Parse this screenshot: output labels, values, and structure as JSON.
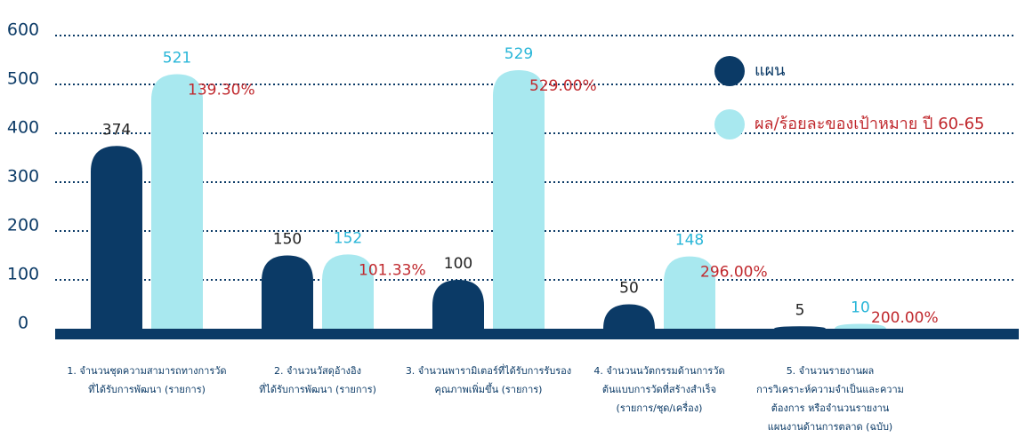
{
  "chart_data": {
    "type": "bar",
    "categories": [
      "1. จำนวนชุดความสามารถทางการวัด\nที่ได้รับการพัฒนา (รายการ)",
      "2. จำนวนวัสดุอ้างอิง\nที่ได้รับการพัฒนา (รายการ)",
      "3. จำนวนพารามิเตอร์ที่ได้รับการรับรอง\nคุณภาพเพิ่มขึ้น (รายการ)",
      "4. จำนวนนวัตกรรมด้านการวัด\nต้นแบบการวัดที่สร้างสำเร็จ\n(รายการ/ชุด/เครื่อง)",
      "5. จำนวนรายงานผล\nการวิเคราะห์ความจำเป็นและความ\nต้องการ หรือจำนวนรายงาน\nแผนงานด้านการตลาด (ฉบับ)"
    ],
    "series": [
      {
        "name": "แผน",
        "color": "#0b3a66",
        "label_color": "#222222",
        "values": [
          374,
          150,
          100,
          50,
          5
        ]
      },
      {
        "name": "ผล/ร้อยละของเป้าหมาย ปี 60-65",
        "color": "#a8e8ef",
        "label_color": "#29b6d8",
        "values": [
          521,
          152,
          529,
          148,
          10
        ]
      }
    ],
    "percent": {
      "color": "#c0282d",
      "values": [
        139.3,
        101.33,
        529,
        296,
        200
      ],
      "value_labels": [
        "139.30%",
        "101.33%",
        "529.00%",
        "296.00%",
        "200.00%"
      ]
    },
    "ylim": [
      0,
      600
    ],
    "yticks": [
      0,
      100,
      200,
      300,
      400,
      500,
      600
    ],
    "grid": true
  }
}
